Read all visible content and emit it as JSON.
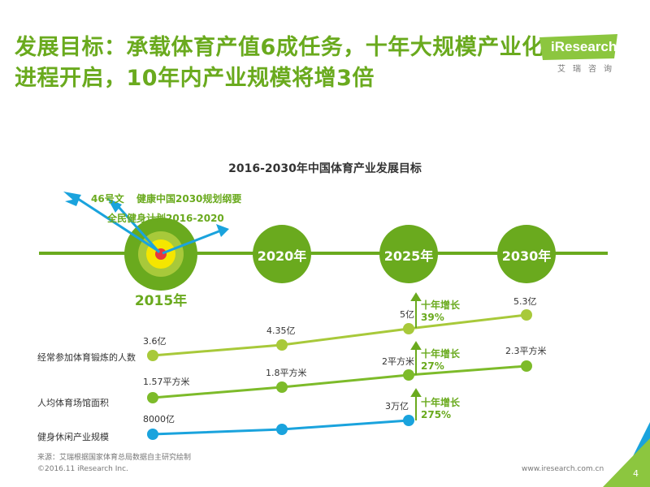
{
  "title": "发展目标：承载体育产值6成任务，十年大规模产业化进程开启，10年内产业规模将增3倍",
  "logo": {
    "text": "iResearch",
    "sub": "艾瑞咨询"
  },
  "chart_title": "2016-2030年中国体育产业发展目标",
  "policies": [
    "46号文",
    "健康中国2030规划纲要",
    "全民健身计划2016-2020"
  ],
  "years": [
    "2015年",
    "2020年",
    "2025年",
    "2030年"
  ],
  "rows": [
    {
      "label": "经常参加体育锻炼的人数",
      "values": [
        "3.6亿",
        "4.35亿",
        "5亿",
        "5.3亿"
      ]
    },
    {
      "label": "人均体育场馆面积",
      "values": [
        "1.57平方米",
        "1.8平方米",
        "2平方米",
        "2.3平方米"
      ]
    },
    {
      "label": "健身休闲产业规模",
      "values": [
        "8000亿",
        "3万亿"
      ]
    }
  ],
  "growth": [
    {
      "label": "十年增长",
      "value": "39%"
    },
    {
      "label": "十年增长",
      "value": "27%"
    },
    {
      "label": "十年增长",
      "value": "275%"
    }
  ],
  "source": "来源：艾瑞根据国家体育总局数据自主研究绘制",
  "footer_left": "©2016.11 iResearch Inc.",
  "footer_right": "www.iresearch.com.cn",
  "page_number": "4",
  "colors": {
    "green": "#6aaa1e",
    "light_green": "#a8c93a",
    "mid_green": "#7dbb2a",
    "blue": "#1aa3dd",
    "yellow": "#f5e600",
    "red": "#e8383d"
  }
}
